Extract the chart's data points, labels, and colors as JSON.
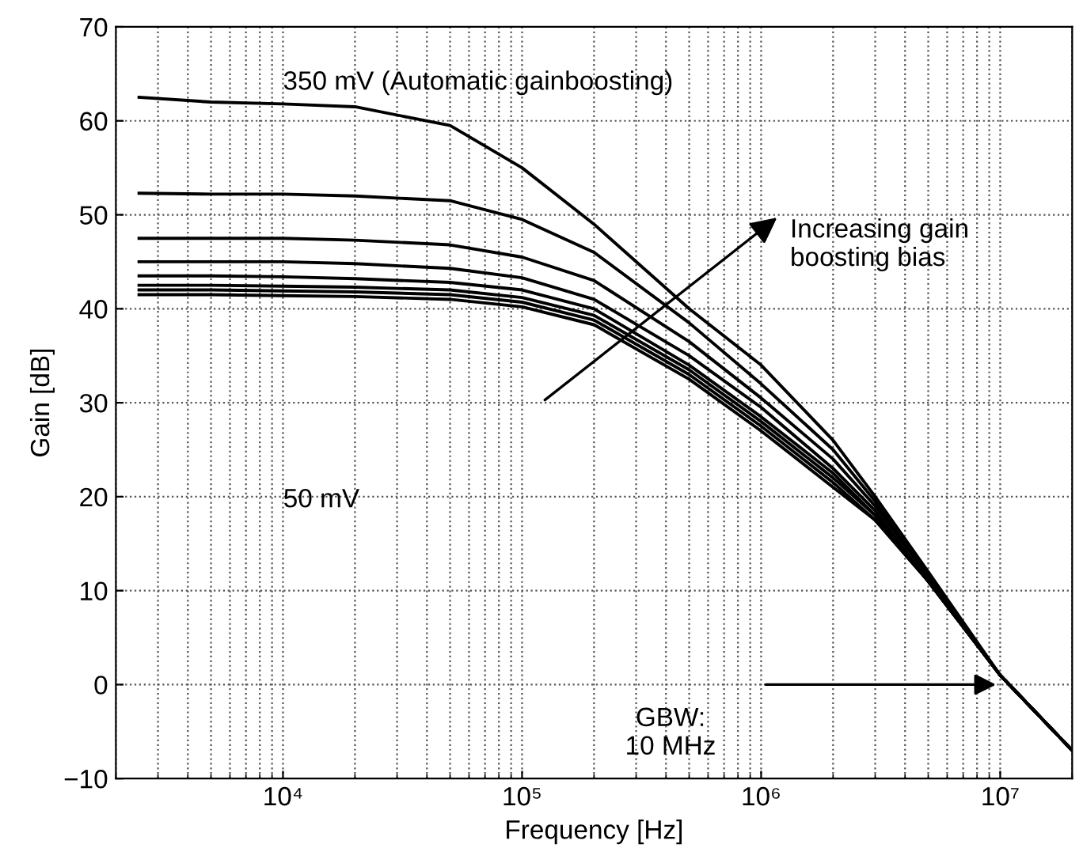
{
  "chart_data": {
    "type": "line",
    "xlabel": "Frequency [Hz]",
    "ylabel": "Gain [dB]",
    "log": "x",
    "xlim": [
      2000,
      20000000
    ],
    "ylim": [
      -10,
      70
    ],
    "xticks": [
      {
        "value": 10000,
        "label": "10⁴"
      },
      {
        "value": 100000,
        "label": "10⁵"
      },
      {
        "value": 1000000,
        "label": "10⁶"
      },
      {
        "value": 10000000,
        "label": "10⁷"
      }
    ],
    "yticks": [
      -10,
      0,
      10,
      20,
      30,
      40,
      50,
      60,
      70
    ],
    "grid": true,
    "legend": false,
    "marker": "none",
    "line_style": "solid",
    "x": [
      2500,
      5000,
      10000,
      20000,
      50000,
      100000,
      200000,
      500000,
      1000000,
      2000000,
      3000000,
      5000000,
      10000000,
      20000000
    ],
    "series": [
      {
        "name": "350 mV (Automatic gainboosting)",
        "color": "#000000",
        "values": [
          62.5,
          62.0,
          61.8,
          61.5,
          59.5,
          55,
          49,
          40,
          34,
          26,
          20,
          12,
          1,
          -7
        ]
      },
      {
        "color": "#000000",
        "values": [
          52.3,
          52.2,
          52.2,
          52.0,
          51.5,
          49.5,
          46,
          38.5,
          32,
          25,
          19.5,
          11.5,
          1,
          -7
        ]
      },
      {
        "color": "#000000",
        "values": [
          47.5,
          47.5,
          47.5,
          47.3,
          46.8,
          45.5,
          43,
          36.5,
          30.5,
          24,
          19,
          11.5,
          1,
          -7
        ]
      },
      {
        "color": "#000000",
        "values": [
          45,
          45,
          45,
          44.8,
          44.3,
          43.3,
          41,
          35,
          29.5,
          23,
          18.5,
          11,
          1,
          -7
        ]
      },
      {
        "color": "#000000",
        "values": [
          43.5,
          43.5,
          43.4,
          43.2,
          42.8,
          42,
          40,
          34,
          28.5,
          22.5,
          18,
          11,
          1,
          -7
        ]
      },
      {
        "color": "#000000",
        "values": [
          42.5,
          42.5,
          42.4,
          42.3,
          42,
          41.2,
          39.3,
          33.5,
          28,
          22,
          18,
          11,
          1,
          -7
        ]
      },
      {
        "color": "#000000",
        "values": [
          42,
          42,
          41.9,
          41.8,
          41.5,
          40.7,
          38.8,
          33,
          27.5,
          21.5,
          17.5,
          11,
          1,
          -7
        ]
      },
      {
        "color": "#000000",
        "values": [
          41.5,
          41.5,
          41.4,
          41.3,
          41,
          40.2,
          38.3,
          32.5,
          27,
          21,
          17.5,
          11,
          1,
          -7
        ]
      }
    ],
    "annotations": [
      "Increasing gain\nboosting bias",
      "50 mV",
      "GBW:\n10 MHz"
    ]
  }
}
